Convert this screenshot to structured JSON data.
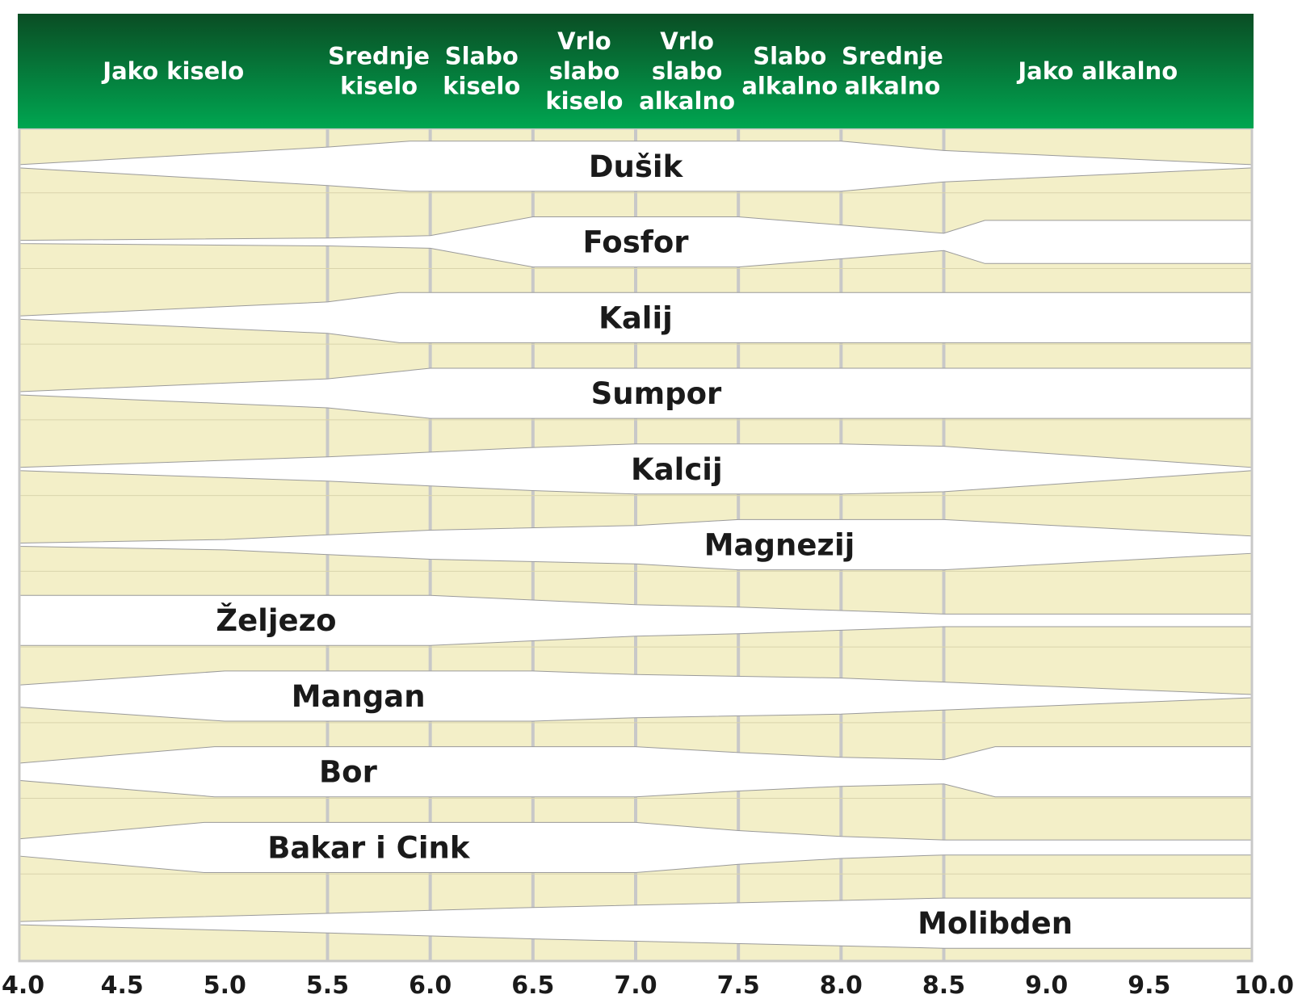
{
  "chart_data": {
    "type": "area",
    "title": "",
    "xlabel": "",
    "ylabel": "",
    "xlim": [
      4.0,
      10.0
    ],
    "x_ticks": [
      "4.0",
      "4.5",
      "5.0",
      "5.5",
      "6.0",
      "6.5",
      "7.0",
      "7.5",
      "8.0",
      "8.5",
      "9.0",
      "9.5",
      "10.0"
    ],
    "grid": true,
    "colors": {
      "header_top": "#0a4d24",
      "header_bottom": "#00a651",
      "background": "#f3efc8",
      "band": "#ffffff",
      "grid": "#c8c8c8"
    },
    "ranges": [
      {
        "label": "Jako kiselo",
        "from": 4.0,
        "to": 5.5
      },
      {
        "label": "Srednje kiselo",
        "from": 5.5,
        "to": 6.0
      },
      {
        "label": "Slabo kiselo",
        "from": 6.0,
        "to": 6.5
      },
      {
        "label": "Vrlo slabo kiselo",
        "from": 6.5,
        "to": 7.0
      },
      {
        "label": "Vrlo slabo alkalno",
        "from": 7.0,
        "to": 7.5
      },
      {
        "label": "Slabo alkalno",
        "from": 7.5,
        "to": 8.0
      },
      {
        "label": "Srednje alkalno",
        "from": 8.0,
        "to": 8.5
      },
      {
        "label": "Jako alkalno",
        "from": 8.5,
        "to": 10.0
      }
    ],
    "series": [
      {
        "name": "Dušik",
        "label_x": 7.0,
        "points": [
          [
            4.0,
            0.0
          ],
          [
            5.5,
            0.75
          ],
          [
            5.9,
            1.0
          ],
          [
            8.0,
            1.0
          ],
          [
            8.5,
            0.6
          ],
          [
            10.0,
            0.0
          ]
        ]
      },
      {
        "name": "Fosfor",
        "label_x": 7.0,
        "points": [
          [
            4.0,
            0.0
          ],
          [
            5.5,
            0.1
          ],
          [
            6.0,
            0.2
          ],
          [
            6.5,
            1.0
          ],
          [
            7.5,
            1.0
          ],
          [
            8.5,
            0.3
          ],
          [
            8.7,
            0.85
          ],
          [
            10.0,
            0.85
          ]
        ]
      },
      {
        "name": "Kalij",
        "label_x": 7.0,
        "points": [
          [
            4.0,
            0.0
          ],
          [
            5.5,
            0.6
          ],
          [
            5.85,
            1.0
          ],
          [
            10.0,
            1.0
          ]
        ]
      },
      {
        "name": "Sumpor",
        "label_x": 7.1,
        "points": [
          [
            4.0,
            0.0
          ],
          [
            5.5,
            0.55
          ],
          [
            6.0,
            1.0
          ],
          [
            10.0,
            1.0
          ]
        ]
      },
      {
        "name": "Kalcij",
        "label_x": 7.2,
        "points": [
          [
            4.0,
            0.0
          ],
          [
            5.5,
            0.45
          ],
          [
            6.0,
            0.65
          ],
          [
            6.5,
            0.85
          ],
          [
            7.0,
            1.0
          ],
          [
            8.0,
            1.0
          ],
          [
            8.5,
            0.9
          ],
          [
            10.0,
            0.0
          ]
        ]
      },
      {
        "name": "Magnezij",
        "label_x": 7.7,
        "points": [
          [
            4.0,
            0.0
          ],
          [
            5.0,
            0.15
          ],
          [
            6.0,
            0.55
          ],
          [
            7.0,
            0.75
          ],
          [
            7.5,
            1.0
          ],
          [
            8.0,
            1.0
          ],
          [
            8.5,
            1.0
          ],
          [
            10.0,
            0.3
          ]
        ]
      },
      {
        "name": "Željezo",
        "label_x": 5.25,
        "points": [
          [
            4.0,
            1.0
          ],
          [
            5.5,
            1.0
          ],
          [
            6.0,
            1.0
          ],
          [
            7.0,
            0.6
          ],
          [
            7.5,
            0.5
          ],
          [
            8.5,
            0.2
          ],
          [
            10.0,
            0.2
          ]
        ]
      },
      {
        "name": "Mangan",
        "label_x": 5.65,
        "points": [
          [
            4.0,
            0.4
          ],
          [
            5.0,
            1.0
          ],
          [
            6.5,
            1.0
          ],
          [
            7.0,
            0.85
          ],
          [
            8.0,
            0.7
          ],
          [
            9.0,
            0.35
          ],
          [
            10.0,
            0.0
          ]
        ]
      },
      {
        "name": "Bor",
        "label_x": 5.6,
        "points": [
          [
            4.0,
            0.3
          ],
          [
            4.95,
            1.0
          ],
          [
            7.0,
            1.0
          ],
          [
            7.5,
            0.75
          ],
          [
            8.0,
            0.55
          ],
          [
            8.5,
            0.45
          ],
          [
            8.75,
            1.0
          ],
          [
            10.0,
            1.0
          ]
        ]
      },
      {
        "name": "Bakar i Cink",
        "label_x": 5.7,
        "points": [
          [
            4.0,
            0.3
          ],
          [
            4.9,
            1.0
          ],
          [
            7.0,
            1.0
          ],
          [
            7.5,
            0.65
          ],
          [
            8.0,
            0.4
          ],
          [
            8.5,
            0.25
          ],
          [
            10.0,
            0.25
          ]
        ]
      },
      {
        "name": "Molibden",
        "label_x": 8.75,
        "points": [
          [
            4.0,
            0.0
          ],
          [
            5.5,
            0.35
          ],
          [
            6.5,
            0.6
          ],
          [
            8.0,
            0.9
          ],
          [
            8.5,
            1.0
          ],
          [
            10.0,
            1.0
          ]
        ]
      }
    ]
  }
}
